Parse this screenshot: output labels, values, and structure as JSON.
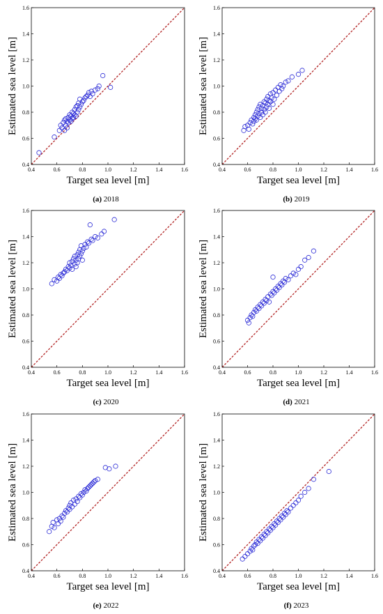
{
  "colors": {
    "marker": "#2a2ad6",
    "identity_line": "#b22222",
    "axis": "#000000"
  },
  "chart_data": [
    {
      "type": "scatter",
      "caption_letter": "(a)",
      "caption_year": " 2018",
      "xlabel": "Target sea level [m]",
      "ylabel": "Estimated sea level [m]",
      "xlim": [
        0.4,
        1.6
      ],
      "ylim": [
        0.4,
        1.6
      ],
      "xticks": [
        "0.4",
        "0.6",
        "0.8",
        "1.0",
        "1.2",
        "1.4",
        "1.6"
      ],
      "yticks": [
        "0.4",
        "0.6",
        "0.8",
        "1.0",
        "1.2",
        "1.4",
        "1.6"
      ],
      "reference_line": "y = x, dashed",
      "marker": "open circle",
      "x": [
        0.46,
        0.58,
        0.62,
        0.63,
        0.64,
        0.65,
        0.66,
        0.66,
        0.67,
        0.67,
        0.68,
        0.68,
        0.69,
        0.69,
        0.7,
        0.7,
        0.71,
        0.71,
        0.72,
        0.72,
        0.73,
        0.73,
        0.74,
        0.74,
        0.75,
        0.75,
        0.76,
        0.76,
        0.77,
        0.77,
        0.78,
        0.78,
        0.79,
        0.8,
        0.81,
        0.82,
        0.83,
        0.84,
        0.85,
        0.86,
        0.87,
        0.88,
        0.9,
        0.92,
        0.93,
        0.96,
        1.02
      ],
      "y": [
        0.49,
        0.61,
        0.66,
        0.7,
        0.68,
        0.72,
        0.66,
        0.74,
        0.7,
        0.75,
        0.68,
        0.73,
        0.72,
        0.76,
        0.74,
        0.78,
        0.73,
        0.77,
        0.75,
        0.8,
        0.76,
        0.79,
        0.78,
        0.82,
        0.77,
        0.84,
        0.8,
        0.85,
        0.82,
        0.87,
        0.84,
        0.9,
        0.86,
        0.88,
        0.89,
        0.91,
        0.92,
        0.93,
        0.95,
        0.92,
        0.96,
        0.94,
        0.97,
        0.98,
        1.0,
        1.08,
        0.99
      ]
    },
    {
      "type": "scatter",
      "caption_letter": "(b)",
      "caption_year": " 2019",
      "xlabel": "Target sea level [m]",
      "ylabel": "Estimated sea level [m]",
      "xlim": [
        0.4,
        1.6
      ],
      "ylim": [
        0.4,
        1.6
      ],
      "xticks": [
        "0.4",
        "0.6",
        "0.8",
        "1.0",
        "1.2",
        "1.4",
        "1.6"
      ],
      "yticks": [
        "0.4",
        "0.6",
        "0.8",
        "1.0",
        "1.2",
        "1.4",
        "1.6"
      ],
      "reference_line": "y = x, dashed",
      "marker": "open circle",
      "x": [
        0.57,
        0.58,
        0.6,
        0.61,
        0.62,
        0.63,
        0.64,
        0.65,
        0.65,
        0.66,
        0.66,
        0.67,
        0.67,
        0.68,
        0.68,
        0.69,
        0.69,
        0.7,
        0.7,
        0.71,
        0.71,
        0.72,
        0.72,
        0.73,
        0.73,
        0.74,
        0.74,
        0.75,
        0.75,
        0.76,
        0.76,
        0.77,
        0.77,
        0.78,
        0.78,
        0.79,
        0.8,
        0.8,
        0.81,
        0.82,
        0.83,
        0.84,
        0.85,
        0.86,
        0.87,
        0.88,
        0.9,
        0.92,
        0.95,
        1.0,
        1.03
      ],
      "y": [
        0.66,
        0.69,
        0.7,
        0.67,
        0.72,
        0.74,
        0.71,
        0.76,
        0.73,
        0.78,
        0.75,
        0.8,
        0.74,
        0.82,
        0.77,
        0.79,
        0.84,
        0.76,
        0.86,
        0.8,
        0.83,
        0.85,
        0.78,
        0.88,
        0.82,
        0.87,
        0.8,
        0.9,
        0.84,
        0.86,
        0.92,
        0.89,
        0.83,
        0.94,
        0.88,
        0.91,
        0.95,
        0.86,
        0.9,
        0.97,
        0.93,
        0.99,
        0.96,
        1.01,
        0.98,
        1.0,
        1.03,
        1.04,
        1.07,
        1.09,
        1.12
      ]
    },
    {
      "type": "scatter",
      "caption_letter": "(c)",
      "caption_year": " 2020",
      "xlabel": "Target sea level [m]",
      "ylabel": "Estimated sea level [m]",
      "xlim": [
        0.4,
        1.6
      ],
      "ylim": [
        0.4,
        1.6
      ],
      "xticks": [
        "0.4",
        "0.6",
        "0.8",
        "1.0",
        "1.2",
        "1.4",
        "1.6"
      ],
      "yticks": [
        "0.4",
        "0.6",
        "0.8",
        "1.0",
        "1.2",
        "1.4",
        "1.6"
      ],
      "reference_line": "y = x, dashed",
      "marker": "open circle",
      "x": [
        0.56,
        0.58,
        0.6,
        0.61,
        0.62,
        0.63,
        0.64,
        0.65,
        0.66,
        0.67,
        0.68,
        0.69,
        0.7,
        0.7,
        0.71,
        0.72,
        0.72,
        0.73,
        0.74,
        0.74,
        0.75,
        0.75,
        0.76,
        0.76,
        0.77,
        0.77,
        0.78,
        0.78,
        0.79,
        0.79,
        0.8,
        0.8,
        0.81,
        0.82,
        0.83,
        0.84,
        0.85,
        0.86,
        0.87,
        0.88,
        0.9,
        0.92,
        0.95,
        0.97,
        1.05
      ],
      "y": [
        1.04,
        1.07,
        1.06,
        1.09,
        1.08,
        1.11,
        1.1,
        1.12,
        1.13,
        1.15,
        1.14,
        1.17,
        1.16,
        1.2,
        1.18,
        1.21,
        1.15,
        1.23,
        1.19,
        1.25,
        1.22,
        1.17,
        1.26,
        1.2,
        1.28,
        1.23,
        1.3,
        1.25,
        1.27,
        1.33,
        1.29,
        1.22,
        1.31,
        1.34,
        1.32,
        1.36,
        1.35,
        1.49,
        1.38,
        1.37,
        1.4,
        1.39,
        1.42,
        1.44,
        1.53
      ]
    },
    {
      "type": "scatter",
      "caption_letter": "(d)",
      "caption_year": " 2021",
      "xlabel": "Target sea level [m]",
      "ylabel": "Estimated sea level [m]",
      "xlim": [
        0.4,
        1.6
      ],
      "ylim": [
        0.4,
        1.6
      ],
      "xticks": [
        "0.4",
        "0.6",
        "0.8",
        "1.0",
        "1.2",
        "1.4",
        "1.6"
      ],
      "yticks": [
        "0.4",
        "0.6",
        "0.8",
        "1.0",
        "1.2",
        "1.4",
        "1.6"
      ],
      "reference_line": "y = x, dashed",
      "marker": "open circle",
      "x": [
        0.6,
        0.61,
        0.62,
        0.63,
        0.64,
        0.65,
        0.66,
        0.67,
        0.68,
        0.69,
        0.7,
        0.71,
        0.72,
        0.73,
        0.74,
        0.75,
        0.76,
        0.77,
        0.78,
        0.79,
        0.8,
        0.8,
        0.81,
        0.82,
        0.83,
        0.84,
        0.85,
        0.86,
        0.87,
        0.88,
        0.89,
        0.9,
        0.92,
        0.94,
        0.96,
        0.98,
        1.0,
        1.02,
        1.05,
        1.08,
        1.12
      ],
      "y": [
        0.76,
        0.74,
        0.78,
        0.8,
        0.79,
        0.82,
        0.84,
        0.83,
        0.86,
        0.85,
        0.88,
        0.87,
        0.9,
        0.89,
        0.92,
        0.91,
        0.94,
        0.9,
        0.96,
        0.95,
        0.98,
        1.09,
        0.97,
        1.0,
        0.99,
        1.02,
        1.01,
        1.04,
        1.03,
        1.06,
        1.05,
        1.08,
        1.07,
        1.1,
        1.12,
        1.11,
        1.15,
        1.17,
        1.22,
        1.24,
        1.29
      ]
    },
    {
      "type": "scatter",
      "caption_letter": "(e)",
      "caption_year": " 2022",
      "xlabel": "Target sea level [m]",
      "ylabel": "Estimated sea level [m]",
      "xlim": [
        0.4,
        1.6
      ],
      "ylim": [
        0.4,
        1.6
      ],
      "xticks": [
        "0.4",
        "0.6",
        "0.8",
        "1.0",
        "1.2",
        "1.4",
        "1.6"
      ],
      "yticks": [
        "0.4",
        "0.6",
        "0.8",
        "1.0",
        "1.2",
        "1.4",
        "1.6"
      ],
      "reference_line": "y = x, dashed",
      "marker": "open circle",
      "x": [
        0.54,
        0.56,
        0.57,
        0.58,
        0.6,
        0.61,
        0.62,
        0.63,
        0.64,
        0.65,
        0.66,
        0.67,
        0.68,
        0.69,
        0.7,
        0.7,
        0.71,
        0.72,
        0.73,
        0.74,
        0.75,
        0.76,
        0.77,
        0.78,
        0.79,
        0.8,
        0.81,
        0.82,
        0.83,
        0.84,
        0.85,
        0.86,
        0.87,
        0.88,
        0.89,
        0.9,
        0.92,
        0.98,
        1.01,
        1.06
      ],
      "y": [
        0.7,
        0.74,
        0.77,
        0.73,
        0.79,
        0.76,
        0.8,
        0.78,
        0.82,
        0.81,
        0.84,
        0.86,
        0.85,
        0.88,
        0.87,
        0.9,
        0.92,
        0.89,
        0.94,
        0.91,
        0.95,
        0.93,
        0.97,
        0.96,
        0.99,
        0.98,
        1.0,
        1.02,
        1.01,
        1.03,
        1.04,
        1.05,
        1.06,
        1.07,
        1.08,
        1.09,
        1.1,
        1.19,
        1.18,
        1.2
      ]
    },
    {
      "type": "scatter",
      "caption_letter": "(f)",
      "caption_year": " 2023",
      "xlabel": "Target sea level [m]",
      "ylabel": "Estimated sea level [m]",
      "xlim": [
        0.4,
        1.6
      ],
      "ylim": [
        0.4,
        1.6
      ],
      "xticks": [
        "0.4",
        "0.6",
        "0.8",
        "1.0",
        "1.2",
        "1.4",
        "1.6"
      ],
      "yticks": [
        "0.4",
        "0.6",
        "0.8",
        "1.0",
        "1.2",
        "1.4",
        "1.6"
      ],
      "reference_line": "y = x, dashed",
      "marker": "open circle",
      "x": [
        0.56,
        0.58,
        0.6,
        0.62,
        0.63,
        0.64,
        0.65,
        0.66,
        0.67,
        0.68,
        0.69,
        0.7,
        0.71,
        0.72,
        0.73,
        0.74,
        0.75,
        0.76,
        0.77,
        0.78,
        0.79,
        0.8,
        0.81,
        0.82,
        0.83,
        0.84,
        0.85,
        0.86,
        0.87,
        0.88,
        0.89,
        0.9,
        0.91,
        0.92,
        0.94,
        0.96,
        0.98,
        1.0,
        1.02,
        1.05,
        1.08,
        1.12,
        1.24
      ],
      "y": [
        0.49,
        0.51,
        0.53,
        0.55,
        0.57,
        0.56,
        0.59,
        0.6,
        0.62,
        0.61,
        0.64,
        0.63,
        0.66,
        0.65,
        0.68,
        0.67,
        0.7,
        0.69,
        0.72,
        0.71,
        0.74,
        0.73,
        0.76,
        0.75,
        0.78,
        0.77,
        0.8,
        0.79,
        0.82,
        0.81,
        0.84,
        0.83,
        0.86,
        0.85,
        0.88,
        0.9,
        0.92,
        0.94,
        0.97,
        1.0,
        1.03,
        1.1,
        1.16
      ]
    }
  ]
}
